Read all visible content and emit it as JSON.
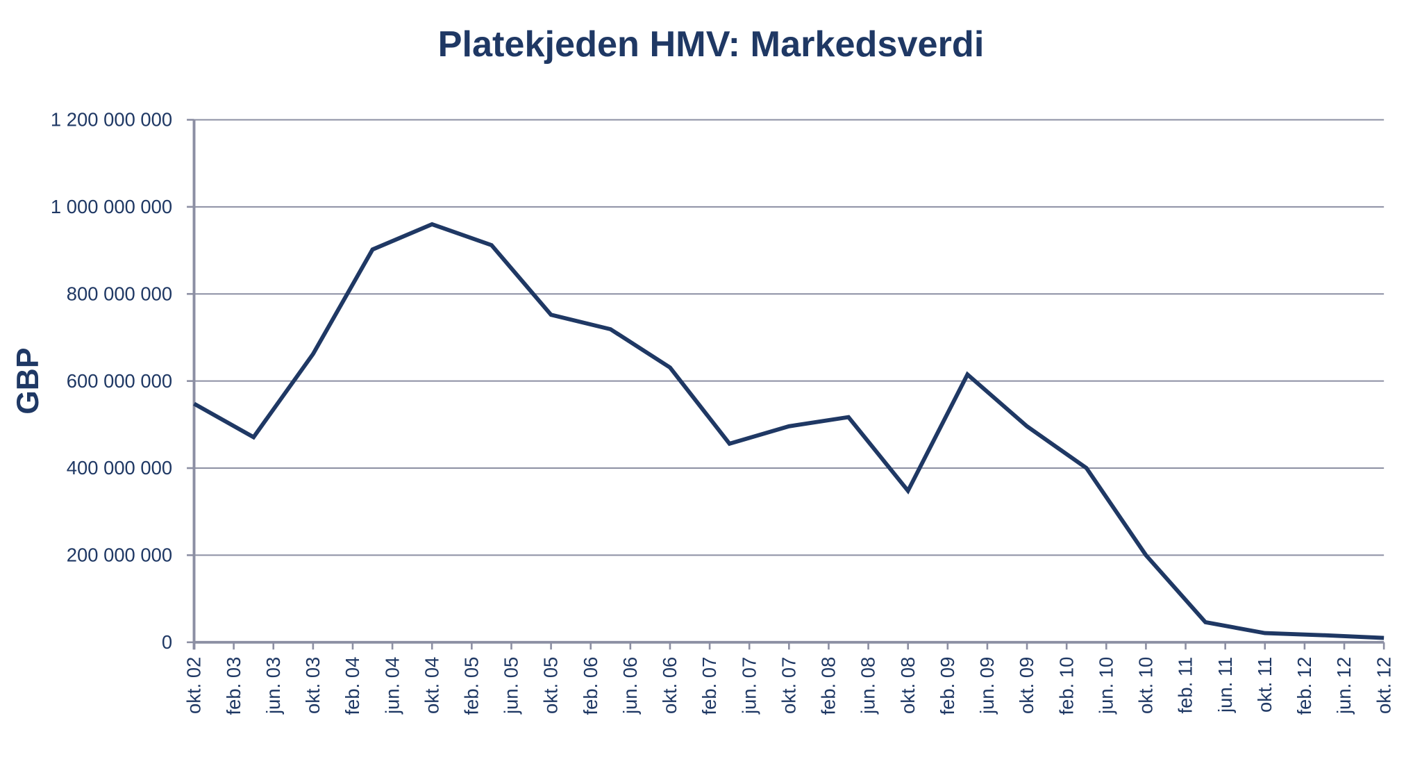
{
  "chart_data": {
    "type": "line",
    "title": "Platekjeden HMV: Markedsverdi",
    "xlabel": "",
    "ylabel": "GBP",
    "ylim": [
      0,
      1200000000
    ],
    "yticks": [
      0,
      200000000,
      400000000,
      600000000,
      800000000,
      1000000000,
      1200000000
    ],
    "ytick_labels": [
      "0",
      "200 000 000",
      "400 000 000",
      "600 000 000",
      "800 000 000",
      "1 000 000 000",
      "1 200 000 000"
    ],
    "x_tick_labels": [
      "okt. 02",
      "feb. 03",
      "jun. 03",
      "okt. 03",
      "feb. 04",
      "jun. 04",
      "okt. 04",
      "feb. 05",
      "jun. 05",
      "okt. 05",
      "feb. 06",
      "jun. 06",
      "okt. 06",
      "feb. 07",
      "jun. 07",
      "okt. 07",
      "feb. 08",
      "jun. 08",
      "okt. 08",
      "feb. 09",
      "jun. 09",
      "okt. 09",
      "feb. 10",
      "jun. 10",
      "okt. 10",
      "feb. 11",
      "jun. 11",
      "okt. 11",
      "feb. 12",
      "jun. 12",
      "okt. 12"
    ],
    "grid": true,
    "legend": "none",
    "series": [
      {
        "name": "Markedsverdi",
        "color": "#1f3864",
        "x_index": [
          0,
          1.5,
          3,
          4.5,
          6,
          7.5,
          9,
          10.5,
          12,
          13.5,
          15,
          16.5,
          18,
          19.5,
          21,
          22.5,
          24,
          25.5,
          27,
          28.5,
          30
        ],
        "values": [
          548000000,
          471000000,
          662000000,
          902000000,
          960000000,
          912000000,
          752000000,
          719000000,
          631000000,
          456000000,
          496000000,
          517000000,
          348000000,
          615000000,
          496000000,
          400000000,
          200000000,
          46000000,
          21000000,
          16000000,
          10000000
        ]
      }
    ]
  }
}
